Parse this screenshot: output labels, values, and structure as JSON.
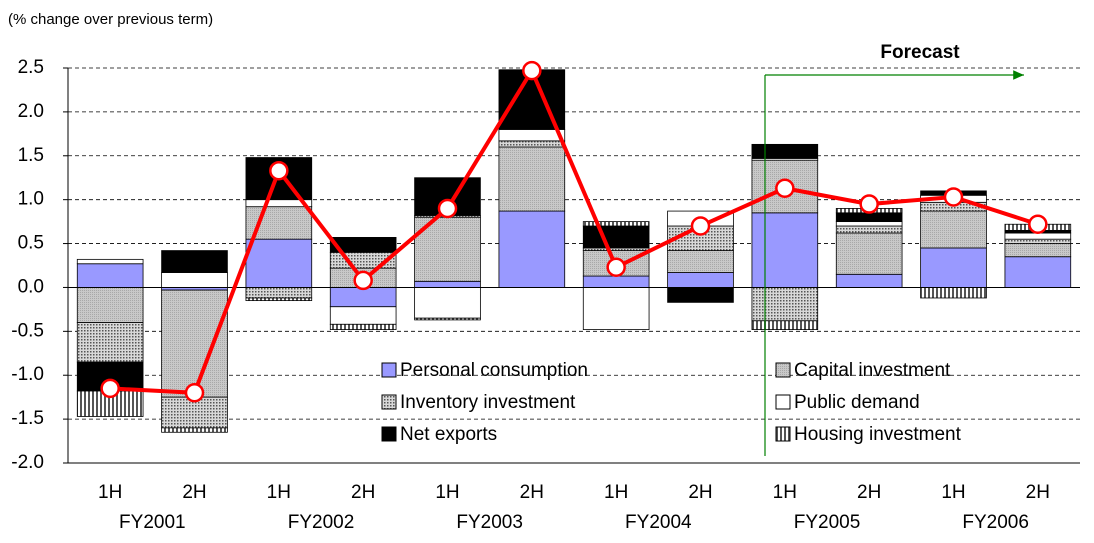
{
  "chart_data": {
    "type": "bar",
    "y_axis_label": "(% change over previous term)",
    "annotation": "Forecast",
    "categories": [
      "1H",
      "2H",
      "1H",
      "2H",
      "1H",
      "2H",
      "1H",
      "2H",
      "1H",
      "2H",
      "1H",
      "2H"
    ],
    "groups": [
      "FY2001",
      "FY2002",
      "FY2003",
      "FY2004",
      "FY2005",
      "FY2006"
    ],
    "ylim": [
      -2.0,
      2.5
    ],
    "yticks": [
      {
        "value": -2.0,
        "label": "-2.0"
      },
      -1.5,
      {
        "value": -1.0,
        "label": "-1.0"
      },
      -0.5,
      {
        "value": 0.0,
        "label": "0.0"
      },
      0.5,
      {
        "value": 1.0,
        "label": "1.0"
      },
      1.5,
      {
        "value": 2.0,
        "label": "2.0"
      },
      2.5
    ],
    "grid": true,
    "series": [
      {
        "name": "Personal consumption",
        "color": "#9999ff",
        "values": [
          0.27,
          -0.03,
          0.55,
          -0.22,
          0.07,
          0.87,
          0.13,
          0.17,
          0.85,
          0.15,
          0.45,
          0.35
        ]
      },
      {
        "name": "Capital investment",
        "color": "#c0c0c0",
        "values": [
          -0.4,
          -1.22,
          0.37,
          0.22,
          0.73,
          0.73,
          0.29,
          0.25,
          0.6,
          0.47,
          0.42,
          0.15
        ]
      },
      {
        "name": "Inventory investment",
        "color": "#a0a0a0",
        "pattern": "dots",
        "values": [
          -0.45,
          -0.35,
          -0.12,
          0.18,
          0.02,
          0.07,
          0.03,
          0.28,
          -0.38,
          0.08,
          0.1,
          0.05
        ]
      },
      {
        "name": "Public demand",
        "color": "#ffffff",
        "values": [
          0.05,
          0.17,
          0.08,
          -0.2,
          -0.35,
          0.13,
          -0.48,
          0.17,
          0.02,
          0.05,
          0.08,
          0.07
        ]
      },
      {
        "name": "Net exports",
        "color": "#000000",
        "values": [
          -0.33,
          0.25,
          0.48,
          0.17,
          0.43,
          0.68,
          0.25,
          -0.17,
          0.16,
          0.1,
          0.05,
          0.03
        ]
      },
      {
        "name": "Housing investment",
        "color": "#808080",
        "pattern": "stripes",
        "values": [
          -0.29,
          -0.05,
          -0.03,
          -0.06,
          -0.02,
          0.0,
          0.05,
          0.0,
          -0.1,
          0.05,
          -0.12,
          0.07
        ]
      }
    ],
    "line": {
      "type": "line",
      "color": "#ff0000",
      "values": [
        -1.15,
        -1.2,
        1.33,
        0.08,
        0.9,
        2.47,
        0.23,
        0.7,
        1.13,
        0.95,
        1.03,
        0.72
      ]
    }
  }
}
